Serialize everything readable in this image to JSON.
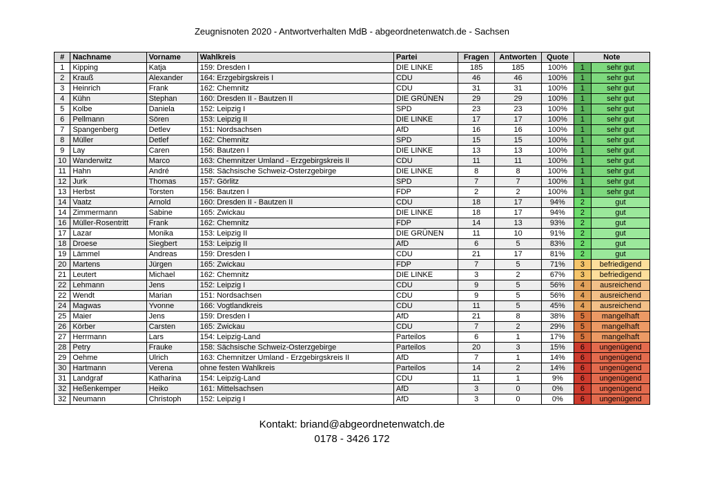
{
  "title": "Zeugnisnoten 2020 - Antwortverhalten MdB - abgeordnetenwatch.de - Sachsen",
  "footer": {
    "line1": "Kontakt: briand@abgeordnetenwatch.de",
    "line2": "0178 - 3426 172"
  },
  "headers": {
    "num": "#",
    "last": "Nachname",
    "first": "Vorname",
    "wk": "Wahlkreis",
    "party": "Partei",
    "q": "Fragen",
    "a": "Antworten",
    "quote": "Quote",
    "note": "Note"
  },
  "gradeColors": {
    "1": {
      "num": "#5fb55f",
      "txt": "#7ed97e"
    },
    "2": {
      "num": "#6fdc6f",
      "txt": "#9be89b"
    },
    "3": {
      "num": "#f5c56b",
      "txt": "#fddf9c"
    },
    "4": {
      "num": "#e3a25c",
      "txt": "#f2c089"
    },
    "5": {
      "num": "#d7753e",
      "txt": "#ec9a65"
    },
    "6": {
      "num": "#cc3b2e",
      "txt": "#e36b4e"
    }
  },
  "gradeText": {
    "1": "sehr gut",
    "2": "gut",
    "3": "befriedigend",
    "4": "ausreichend",
    "5": "mangelhaft",
    "6": "ungenügend"
  },
  "rows": [
    {
      "n": "1",
      "last": "Kipping",
      "first": "Katja",
      "wk": "159: Dresden I",
      "party": "DIE LINKE",
      "q": "185",
      "a": "185",
      "quote": "100%",
      "g": "1"
    },
    {
      "n": "2",
      "last": "Krauß",
      "first": "Alexander",
      "wk": "164: Erzgebirgskreis I",
      "party": "CDU",
      "q": "46",
      "a": "46",
      "quote": "100%",
      "g": "1"
    },
    {
      "n": "3",
      "last": "Heinrich",
      "first": "Frank",
      "wk": "162: Chemnitz",
      "party": "CDU",
      "q": "31",
      "a": "31",
      "quote": "100%",
      "g": "1"
    },
    {
      "n": "4",
      "last": "Kühn",
      "first": "Stephan",
      "wk": "160: Dresden II - Bautzen II",
      "party": "DIE GRÜNEN",
      "q": "29",
      "a": "29",
      "quote": "100%",
      "g": "1"
    },
    {
      "n": "5",
      "last": "Kolbe",
      "first": "Daniela",
      "wk": "152: Leipzig I",
      "party": "SPD",
      "q": "23",
      "a": "23",
      "quote": "100%",
      "g": "1"
    },
    {
      "n": "6",
      "last": "Pellmann",
      "first": "Sören",
      "wk": "153: Leipzig II",
      "party": "DIE LINKE",
      "q": "17",
      "a": "17",
      "quote": "100%",
      "g": "1"
    },
    {
      "n": "7",
      "last": "Spangenberg",
      "first": "Detlev",
      "wk": "151: Nordsachsen",
      "party": "AfD",
      "q": "16",
      "a": "16",
      "quote": "100%",
      "g": "1"
    },
    {
      "n": "8",
      "last": "Müller",
      "first": "Detlef",
      "wk": "162: Chemnitz",
      "party": "SPD",
      "q": "15",
      "a": "15",
      "quote": "100%",
      "g": "1"
    },
    {
      "n": "9",
      "last": "Lay",
      "first": "Caren",
      "wk": "156: Bautzen I",
      "party": "DIE LINKE",
      "q": "13",
      "a": "13",
      "quote": "100%",
      "g": "1"
    },
    {
      "n": "10",
      "last": "Wanderwitz",
      "first": "Marco",
      "wk": "163: Chemnitzer Umland - Erzgebirgskreis II",
      "party": "CDU",
      "q": "11",
      "a": "11",
      "quote": "100%",
      "g": "1"
    },
    {
      "n": "11",
      "last": "Hahn",
      "first": "André",
      "wk": "158: Sächsische Schweiz-Osterzgebirge",
      "party": "DIE LINKE",
      "q": "8",
      "a": "8",
      "quote": "100%",
      "g": "1"
    },
    {
      "n": "12",
      "last": "Jurk",
      "first": "Thomas",
      "wk": "157: Görlitz",
      "party": "SPD",
      "q": "7",
      "a": "7",
      "quote": "100%",
      "g": "1"
    },
    {
      "n": "13",
      "last": "Herbst",
      "first": "Torsten",
      "wk": "156: Bautzen I",
      "party": "FDP",
      "q": "2",
      "a": "2",
      "quote": "100%",
      "g": "1"
    },
    {
      "n": "14",
      "last": "Vaatz",
      "first": "Arnold",
      "wk": "160: Dresden II - Bautzen II",
      "party": "CDU",
      "q": "18",
      "a": "17",
      "quote": "94%",
      "g": "2"
    },
    {
      "n": "14",
      "last": "Zimmermann",
      "first": "Sabine",
      "wk": "165: Zwickau",
      "party": "DIE LINKE",
      "q": "18",
      "a": "17",
      "quote": "94%",
      "g": "2"
    },
    {
      "n": "16",
      "last": "Müller-Rosentritt",
      "first": "Frank",
      "wk": "162: Chemnitz",
      "party": "FDP",
      "q": "14",
      "a": "13",
      "quote": "93%",
      "g": "2"
    },
    {
      "n": "17",
      "last": "Lazar",
      "first": "Monika",
      "wk": "153: Leipzig II",
      "party": "DIE GRÜNEN",
      "q": "11",
      "a": "10",
      "quote": "91%",
      "g": "2"
    },
    {
      "n": "18",
      "last": "Droese",
      "first": "Siegbert",
      "wk": "153: Leipzig II",
      "party": "AfD",
      "q": "6",
      "a": "5",
      "quote": "83%",
      "g": "2"
    },
    {
      "n": "19",
      "last": "Lämmel",
      "first": "Andreas",
      "wk": "159: Dresden I",
      "party": "CDU",
      "q": "21",
      "a": "17",
      "quote": "81%",
      "g": "2"
    },
    {
      "n": "20",
      "last": "Martens",
      "first": "Jürgen",
      "wk": "165: Zwickau",
      "party": "FDP",
      "q": "7",
      "a": "5",
      "quote": "71%",
      "g": "3"
    },
    {
      "n": "21",
      "last": "Leutert",
      "first": "Michael",
      "wk": "162: Chemnitz",
      "party": "DIE LINKE",
      "q": "3",
      "a": "2",
      "quote": "67%",
      "g": "3"
    },
    {
      "n": "22",
      "last": "Lehmann",
      "first": "Jens",
      "wk": "152: Leipzig I",
      "party": "CDU",
      "q": "9",
      "a": "5",
      "quote": "56%",
      "g": "4"
    },
    {
      "n": "22",
      "last": "Wendt",
      "first": "Marian",
      "wk": "151: Nordsachsen",
      "party": "CDU",
      "q": "9",
      "a": "5",
      "quote": "56%",
      "g": "4"
    },
    {
      "n": "24",
      "last": "Magwas",
      "first": "Yvonne",
      "wk": "166: Vogtlandkreis",
      "party": "CDU",
      "q": "11",
      "a": "5",
      "quote": "45%",
      "g": "4"
    },
    {
      "n": "25",
      "last": "Maier",
      "first": "Jens",
      "wk": "159: Dresden I",
      "party": "AfD",
      "q": "21",
      "a": "8",
      "quote": "38%",
      "g": "5"
    },
    {
      "n": "26",
      "last": "Körber",
      "first": "Carsten",
      "wk": "165: Zwickau",
      "party": "CDU",
      "q": "7",
      "a": "2",
      "quote": "29%",
      "g": "5"
    },
    {
      "n": "27",
      "last": "Herrmann",
      "first": "Lars",
      "wk": "154: Leipzig-Land",
      "party": "Parteilos",
      "q": "6",
      "a": "1",
      "quote": "17%",
      "g": "5"
    },
    {
      "n": "28",
      "last": "Petry",
      "first": "Frauke",
      "wk": "158: Sächsische Schweiz-Osterzgebirge",
      "party": "Parteilos",
      "q": "20",
      "a": "3",
      "quote": "15%",
      "g": "6"
    },
    {
      "n": "29",
      "last": "Oehme",
      "first": "Ulrich",
      "wk": "163: Chemnitzer Umland - Erzgebirgskreis II",
      "party": "AfD",
      "q": "7",
      "a": "1",
      "quote": "14%",
      "g": "6"
    },
    {
      "n": "30",
      "last": "Hartmann",
      "first": "Verena",
      "wk": "ohne festen Wahlkreis",
      "party": "Parteilos",
      "q": "14",
      "a": "2",
      "quote": "14%",
      "g": "6"
    },
    {
      "n": "31",
      "last": "Landgraf",
      "first": "Katharina",
      "wk": "154: Leipzig-Land",
      "party": "CDU",
      "q": "11",
      "a": "1",
      "quote": "9%",
      "g": "6"
    },
    {
      "n": "32",
      "last": "Heßenkemper",
      "first": "Heiko",
      "wk": "161: Mittelsachsen",
      "party": "AfD",
      "q": "3",
      "a": "0",
      "quote": "0%",
      "g": "6"
    },
    {
      "n": "32",
      "last": "Neumann",
      "first": "Christoph",
      "wk": "152: Leipzig I",
      "party": "AfD",
      "q": "3",
      "a": "0",
      "quote": "0%",
      "g": "6"
    }
  ]
}
